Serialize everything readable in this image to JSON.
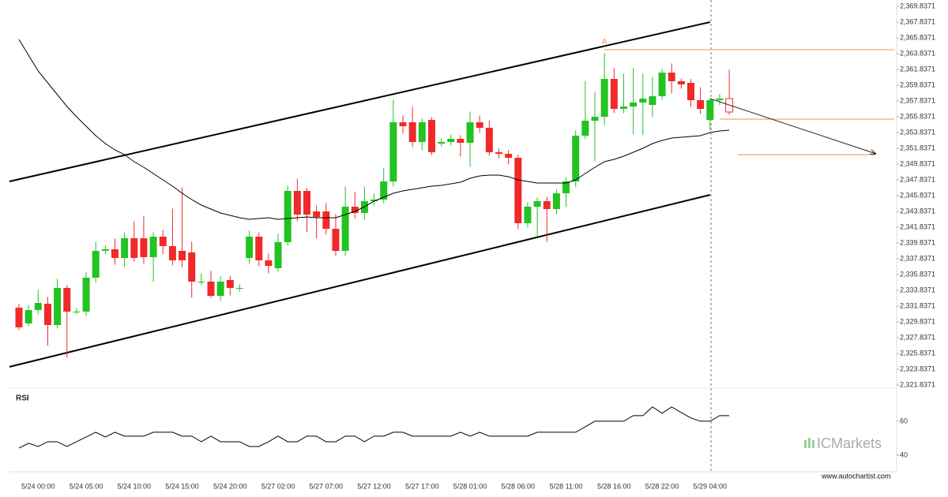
{
  "chart_data": [
    {
      "type": "candlestick",
      "categories": [
        null,
        null,
        "5/24 00:00",
        null,
        null,
        null,
        null,
        "5/24 05:00",
        null,
        null,
        null,
        null,
        "5/24 10:00",
        null,
        null,
        null,
        null,
        "5/24 15:00",
        null,
        null,
        null,
        null,
        "5/24 20:00",
        null,
        null,
        null,
        null,
        "5/27 02:00",
        null,
        null,
        null,
        null,
        "5/27 07:00",
        null,
        null,
        null,
        null,
        "5/27 12:00",
        null,
        null,
        null,
        null,
        "5/27 17:00",
        null,
        null,
        null,
        null,
        "5/28 01:00",
        null,
        null,
        null,
        null,
        "5/28 06:00",
        null,
        null,
        null,
        null,
        "5/28 11:00",
        null,
        null,
        null,
        null,
        "5/28 16:00",
        null,
        null,
        null,
        null,
        "5/28 22:00",
        null,
        null,
        null,
        null,
        "5/29 04:00",
        null,
        null
      ],
      "open": [
        2331.64,
        2329.64,
        2331.34,
        2332.14,
        2329.44,
        2334.14,
        2331.14,
        2331.14,
        2335.44,
        2338.84,
        2339.04,
        2337.94,
        2340.44,
        2340.44,
        2338.04,
        2340.64,
        2339.44,
        2338.84,
        2338.64,
        2334.94,
        2334.94,
        2333.14,
        2335.14,
        2334.14,
        2337.94,
        2340.64,
        2337.64,
        2336.64,
        2339.94,
        2346.44,
        2346.44,
        2343.84,
        2343.84,
        2341.64,
        2338.84,
        2344.44,
        2343.64,
        2345.14,
        2345.34,
        2347.64,
        2355.14,
        2355.14,
        2352.64,
        2355.44,
        2352.44,
        2352.64,
        2353.04,
        2352.54,
        2355.14,
        2354.44,
        2351.34,
        2351.14,
        2350.64,
        2342.34,
        2344.44,
        2345.14,
        2344.14,
        2346.14,
        2347.64,
        2353.44,
        2355.34,
        2355.84,
        2360.64,
        2356.84,
        2357.14,
        2357.64,
        2357.34,
        2358.44,
        2361.44,
        2360.34,
        2360.14,
        2357.94,
        2355.44,
        2357.94,
        2358.14
      ],
      "high": [
        2332.1,
        2332.0,
        2333.9,
        2333.0,
        2335.3,
        2334.5,
        2331.6,
        2336.2,
        2340.0,
        2339.5,
        2340.4,
        2341.2,
        2342.6,
        2343.3,
        2341.2,
        2341.5,
        2344.2,
        2346.9,
        2340.0,
        2336.0,
        2336.3,
        2335.6,
        2335.7,
        2334.6,
        2341.4,
        2341.2,
        2338.5,
        2341.0,
        2347.1,
        2348.0,
        2346.8,
        2344.6,
        2344.9,
        2343.5,
        2347.0,
        2346.3,
        2347.0,
        2346.1,
        2349.3,
        2358.0,
        2356.0,
        2357.1,
        2355.6,
        2355.8,
        2353.1,
        2353.6,
        2353.5,
        2356.5,
        2356.0,
        2355.4,
        2351.8,
        2351.6,
        2351.0,
        2345.0,
        2345.6,
        2345.7,
        2346.6,
        2348.2,
        2354.1,
        2360.4,
        2359.0,
        2363.9,
        2362.0,
        2361.3,
        2362.0,
        2361.3,
        2360.9,
        2361.9,
        2362.6,
        2360.7,
        2360.6,
        2359.6,
        2358.2,
        2358.7,
        2361.8
      ],
      "low": [
        2328.8,
        2329.3,
        2330.8,
        2326.8,
        2329.0,
        2325.3,
        2330.8,
        2330.6,
        2334.8,
        2338.4,
        2337.1,
        2336.8,
        2337.5,
        2337.2,
        2334.9,
        2338.4,
        2337.0,
        2336.8,
        2332.9,
        2334.5,
        2332.9,
        2332.5,
        2333.2,
        2333.7,
        2337.2,
        2336.9,
        2336.0,
        2336.2,
        2339.5,
        2342.6,
        2341.2,
        2340.4,
        2340.9,
        2338.2,
        2338.2,
        2342.9,
        2342.8,
        2344.6,
        2344.9,
        2347.0,
        2353.7,
        2352.0,
        2351.6,
        2351.0,
        2352.1,
        2352.2,
        2350.8,
        2349.5,
        2353.8,
        2350.9,
        2350.6,
        2349.8,
        2341.6,
        2341.8,
        2340.7,
        2340.0,
        2343.5,
        2344.4,
        2346.9,
        2353.0,
        2350.2,
        2354.8,
        2356.3,
        2356.3,
        2353.6,
        2353.5,
        2355.8,
        2358.0,
        2358.8,
        2359.4,
        2357.1,
        2356.2,
        2354.2,
        2357.3,
        2356.1
      ],
      "close": [
        2329.14,
        2331.34,
        2332.24,
        2329.44,
        2334.14,
        2331.14,
        2331.14,
        2335.44,
        2338.84,
        2339.04,
        2337.94,
        2340.44,
        2337.94,
        2338.04,
        2340.64,
        2339.44,
        2337.64,
        2337.64,
        2334.94,
        2334.94,
        2333.14,
        2334.94,
        2334.14,
        2334.14,
        2340.64,
        2337.64,
        2336.94,
        2339.94,
        2346.44,
        2343.44,
        2343.44,
        2343.14,
        2341.64,
        2338.84,
        2344.44,
        2343.64,
        2345.14,
        2345.34,
        2347.64,
        2355.14,
        2354.64,
        2352.64,
        2355.14,
        2351.34,
        2352.64,
        2353.04,
        2352.54,
        2355.14,
        2354.44,
        2351.34,
        2351.14,
        2350.64,
        2342.34,
        2344.44,
        2345.14,
        2344.14,
        2346.14,
        2347.64,
        2353.44,
        2355.34,
        2355.84,
        2360.64,
        2356.84,
        2357.14,
        2357.64,
        2358.14,
        2358.44,
        2361.44,
        2360.34,
        2359.94,
        2357.94,
        2356.84,
        2357.94,
        2358.14,
        2356.44
      ],
      "up_color": "#22c322",
      "down_color": "#f02a2a",
      "moving_average": {
        "color": "#000000",
        "values": [
          2365.64,
          2363.64,
          2361.64,
          2360.14,
          2358.64,
          2357.14,
          2355.84,
          2354.64,
          2353.44,
          2352.44,
          2351.64,
          2351.04,
          2350.14,
          2349.44,
          2348.64,
          2347.84,
          2347.04,
          2346.14,
          2345.34,
          2344.64,
          2344.14,
          2343.64,
          2343.34,
          2343.04,
          2342.84,
          2342.94,
          2343.04,
          2342.84,
          2342.94,
          2343.04,
          2343.14,
          2343.04,
          2343.04,
          2343.04,
          2343.44,
          2343.84,
          2344.44,
          2345.14,
          2345.64,
          2346.14,
          2346.44,
          2346.64,
          2346.84,
          2347.04,
          2347.14,
          2347.34,
          2347.54,
          2348.04,
          2348.34,
          2348.44,
          2348.44,
          2348.24,
          2347.84,
          2347.64,
          2347.44,
          2347.44,
          2347.44,
          2347.44,
          2347.84,
          2348.64,
          2349.44,
          2350.14,
          2350.44,
          2350.84,
          2351.34,
          2351.84,
          2352.44,
          2352.84,
          2353.14,
          2353.24,
          2353.34,
          2353.44,
          2353.84,
          2354.04,
          2354.14
        ]
      },
      "trend_lines": [
        {
          "x": [
            -1,
            72
          ],
          "y": [
            2347.64,
            2367.84
          ]
        },
        {
          "x": [
            -1,
            72
          ],
          "y": [
            2324.14,
            2345.94
          ]
        }
      ],
      "levels": [
        {
          "x": [
            61,
            91.2
          ],
          "y": [
            2364.34,
            2364.34
          ]
        },
        {
          "x": [
            73,
            91.2
          ],
          "y": [
            2355.54,
            2355.54
          ]
        },
        {
          "x": [
            74.9,
            89.3
          ],
          "y": [
            2351.04,
            2351.04
          ]
        }
      ],
      "arrow": {
        "x": [
          72,
          89.3
        ],
        "y": [
          2358.14,
          2351.14
        ]
      },
      "annotation": {
        "text": "A",
        "x": 61,
        "y": 2365.3
      },
      "ylim": [
        2321.64,
        2370.64
      ],
      "yticks": [
        {
          "value": 2321.8371,
          "label": "2,321.8371"
        },
        {
          "value": 2323.8371,
          "label": "2,323.8371"
        },
        {
          "value": 2325.8371,
          "label": "2,325.8371"
        },
        {
          "value": 2327.8371,
          "label": "2,327.8371"
        },
        {
          "value": 2329.8371,
          "label": "2,329.8371"
        },
        {
          "value": 2331.8371,
          "label": "2,331.8371"
        },
        {
          "value": 2333.8371,
          "label": "2,333.8371"
        },
        {
          "value": 2335.8371,
          "label": "2,335.8371"
        },
        {
          "value": 2337.8371,
          "label": "2,337.8371"
        },
        {
          "value": 2339.8371,
          "label": "2,339.8371"
        },
        {
          "value": 2341.8371,
          "label": "2,341.8371"
        },
        {
          "value": 2343.8371,
          "label": "2,343.8371"
        },
        {
          "value": 2345.8371,
          "label": "2,345.8371"
        },
        {
          "value": 2347.8371,
          "label": "2,347.8371"
        },
        {
          "value": 2349.8371,
          "label": "2,349.8371"
        },
        {
          "value": 2351.8371,
          "label": "2,351.8371"
        },
        {
          "value": 2353.8371,
          "label": "2,353.8371"
        },
        {
          "value": 2355.8371,
          "label": "2,355.8371"
        },
        {
          "value": 2357.8371,
          "label": "2,357.8371"
        },
        {
          "value": 2359.8371,
          "label": "2,359.8371"
        },
        {
          "value": 2361.8371,
          "label": "2,361.8371"
        },
        {
          "value": 2363.8371,
          "label": "2,363.8371"
        },
        {
          "value": 2365.8371,
          "label": "2,365.8371"
        },
        {
          "value": 2367.8371,
          "label": "2,367.8371"
        },
        {
          "value": 2369.8371,
          "label": "2,369.8371"
        }
      ]
    },
    {
      "type": "line",
      "title": "RSI",
      "color": "#000000",
      "values": [
        44.2,
        47.0,
        45.1,
        47.9,
        47.9,
        45.1,
        47.9,
        50.7,
        53.5,
        50.7,
        53.5,
        51.2,
        51.2,
        51.2,
        53.5,
        53.5,
        53.5,
        51.2,
        51.2,
        47.9,
        51.2,
        47.9,
        47.9,
        47.9,
        45.1,
        45.1,
        47.9,
        51.2,
        47.9,
        47.9,
        51.2,
        51.2,
        47.9,
        47.9,
        51.2,
        51.2,
        47.9,
        51.2,
        51.2,
        53.5,
        53.5,
        51.2,
        51.2,
        51.2,
        51.2,
        51.2,
        53.5,
        51.2,
        53.5,
        51.2,
        51.2,
        51.2,
        51.2,
        51.2,
        53.5,
        53.5,
        53.5,
        53.5,
        53.5,
        56.7,
        60,
        60,
        60,
        60,
        63.3,
        63.3,
        68.4,
        64.7,
        68.4,
        65.1,
        61.9,
        60,
        60,
        63.3,
        63.3
      ],
      "ylim": [
        31.6,
        78.1
      ],
      "yticks": [
        40,
        60
      ]
    }
  ],
  "watermark": "ICMarkets",
  "footer": "www.autochartist.com"
}
